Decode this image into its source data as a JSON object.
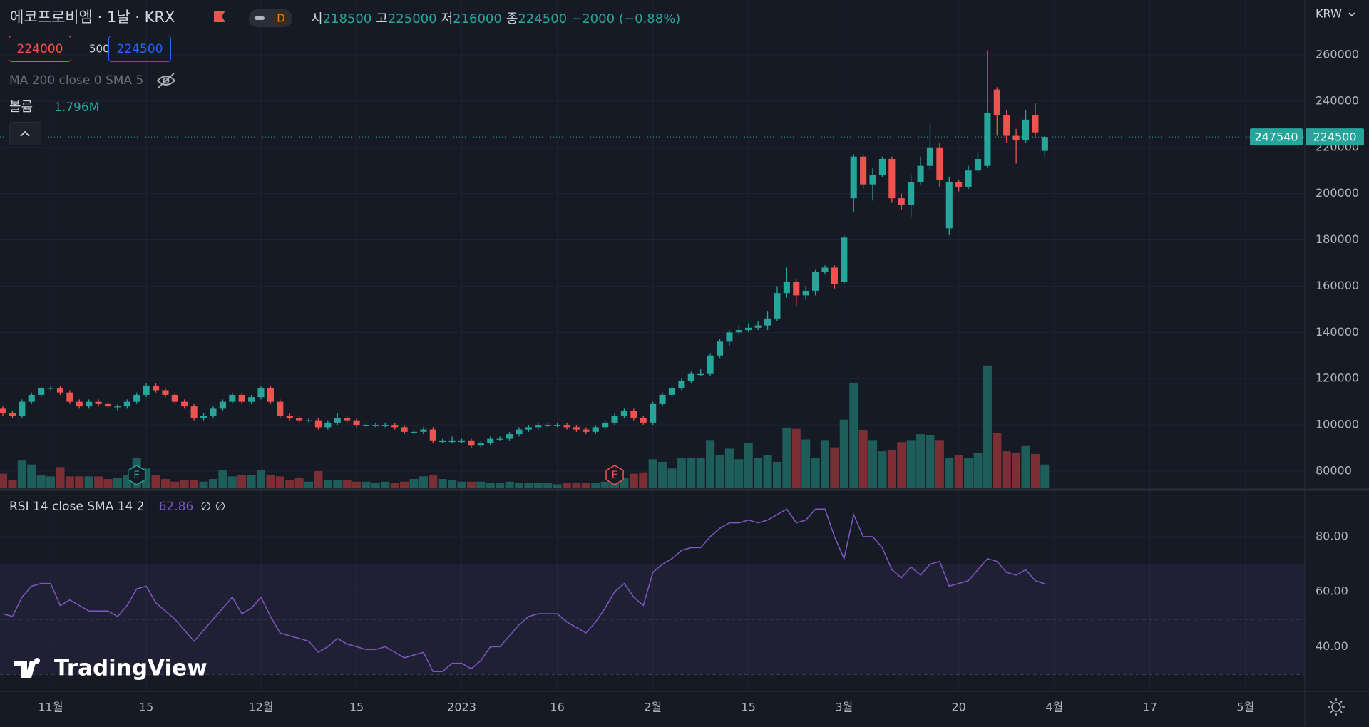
{
  "chart_data": {
    "type": "candlestick",
    "title": "에코프로비엠 · 1날 · KRX",
    "interval": "D",
    "currency": "KRW",
    "legend": {
      "open_label": "시",
      "open": 218500,
      "high_label": "고",
      "high": 225000,
      "low_label": "저",
      "low": 216000,
      "close_label": "종",
      "close": 224500,
      "change": {
        "value": -2000,
        "label": "−2000"
      },
      "change_pct": {
        "value": -0.88,
        "label": "(−0.88%)"
      }
    },
    "trade": {
      "sell": 224000,
      "qty": 500,
      "buy": 224500
    },
    "ma_label": "MA 200 close 0 SMA 5",
    "volume_label": "볼륨",
    "volume_value": {
      "value": 1796000,
      "label": "1.796M"
    },
    "up_color": "#26a69a",
    "down_color": "#ef5350",
    "up_volume_color": "#1d5e5a",
    "down_volume_color": "#7b2f35",
    "open": [
      107000,
      105000,
      104000,
      110000,
      113000,
      116000,
      116000,
      114000,
      110000,
      108000,
      110000,
      109000,
      108000,
      108000,
      110000,
      113000,
      117000,
      115000,
      113000,
      110000,
      108000,
      103000,
      104000,
      107000,
      110000,
      113000,
      110000,
      112000,
      116000,
      110000,
      104000,
      103000,
      102000,
      102000,
      99000,
      101000,
      103000,
      102000,
      100000,
      100000,
      100000,
      100000,
      99000,
      97000,
      97000,
      98000,
      93000,
      93000,
      93000,
      93000,
      91000,
      92000,
      94000,
      94000,
      96000,
      98000,
      99000,
      100000,
      100000,
      100000,
      99000,
      98000,
      97000,
      99000,
      101000,
      104000,
      106000,
      103000,
      101000,
      109000,
      113000,
      116000,
      119000,
      122000,
      122000,
      130000,
      136000,
      140000,
      141000,
      142000,
      143000,
      146000,
      157000,
      162000,
      156000,
      158000,
      166000,
      168000,
      162000,
      198000,
      216000,
      204000,
      208000,
      215000,
      198000,
      195000,
      205000,
      212000,
      220000,
      185000,
      205000,
      203000,
      210000,
      212000,
      245000,
      234000,
      225000,
      223000,
      234000,
      218500
    ],
    "high": [
      108000,
      106000,
      111000,
      114000,
      117000,
      117000,
      117000,
      115000,
      111000,
      111000,
      111000,
      110000,
      109000,
      111000,
      114000,
      118000,
      118000,
      116000,
      114000,
      111000,
      109000,
      105000,
      108000,
      111000,
      114000,
      114000,
      113000,
      117000,
      117000,
      111000,
      105000,
      104000,
      103000,
      103000,
      102000,
      105000,
      104000,
      103000,
      101000,
      101000,
      101000,
      101000,
      100000,
      98000,
      99000,
      99000,
      94000,
      95000,
      94000,
      94000,
      93000,
      95000,
      95000,
      97000,
      99000,
      100000,
      101000,
      101000,
      101000,
      101000,
      100000,
      99000,
      100000,
      102000,
      105000,
      107000,
      107000,
      104000,
      110000,
      114000,
      117000,
      120000,
      123000,
      124000,
      131000,
      137000,
      141000,
      143000,
      144000,
      145000,
      149000,
      160000,
      168000,
      163000,
      160000,
      167000,
      169000,
      169000,
      182000,
      217000,
      217000,
      211000,
      216000,
      216000,
      200000,
      208000,
      216000,
      230000,
      222000,
      207000,
      206000,
      212000,
      218000,
      262000,
      246000,
      236000,
      228000,
      236000,
      239000,
      225000
    ],
    "low": [
      104000,
      103000,
      103000,
      109000,
      112000,
      115000,
      113000,
      109000,
      107000,
      107000,
      108000,
      107000,
      106000,
      107000,
      109000,
      112000,
      114000,
      112000,
      109000,
      107000,
      102000,
      102000,
      103000,
      106000,
      109000,
      109000,
      109000,
      111000,
      109000,
      103000,
      102000,
      101000,
      101000,
      98000,
      98000,
      100000,
      101000,
      99000,
      99000,
      99000,
      99000,
      98000,
      96000,
      96000,
      96000,
      92000,
      92000,
      92000,
      92000,
      90000,
      90000,
      91000,
      93000,
      93000,
      95000,
      97000,
      98000,
      99000,
      99000,
      98000,
      97000,
      96000,
      96000,
      98000,
      100000,
      103000,
      102000,
      100000,
      100000,
      108000,
      112000,
      115000,
      118000,
      121000,
      121000,
      129000,
      134000,
      139000,
      140000,
      141000,
      141000,
      145000,
      155000,
      151000,
      154000,
      156000,
      165000,
      159000,
      161000,
      192000,
      202000,
      197000,
      207000,
      196000,
      193000,
      190000,
      204000,
      210000,
      203000,
      182000,
      201000,
      202000,
      209000,
      211000,
      225000,
      222000,
      213000,
      222000,
      224000,
      216000
    ],
    "close": [
      105000,
      104000,
      110000,
      113000,
      116000,
      116000,
      114000,
      110000,
      108000,
      110000,
      109000,
      108000,
      108000,
      110000,
      113000,
      117000,
      115000,
      113000,
      110000,
      108000,
      103000,
      104000,
      107000,
      110000,
      113000,
      110000,
      112000,
      116000,
      110000,
      104000,
      103000,
      102000,
      102000,
      99000,
      101000,
      103000,
      102000,
      100000,
      100000,
      100000,
      100000,
      99000,
      97000,
      97000,
      98000,
      93000,
      93000,
      93000,
      93000,
      91000,
      92000,
      94000,
      94000,
      96000,
      98000,
      99000,
      100000,
      100000,
      100000,
      99000,
      98000,
      97000,
      99000,
      101000,
      104000,
      106000,
      103000,
      101000,
      109000,
      113000,
      116000,
      119000,
      122000,
      122000,
      130000,
      136000,
      140000,
      141000,
      142000,
      143000,
      146000,
      157000,
      162000,
      156000,
      158000,
      166000,
      168000,
      161000,
      181000,
      216000,
      204000,
      208000,
      215000,
      198000,
      195000,
      205000,
      212000,
      220000,
      206000,
      205000,
      203000,
      210000,
      215000,
      235000,
      234000,
      225000,
      223000,
      232000,
      226500,
      224500
    ],
    "volume": [
      1100000,
      600000,
      2100000,
      1800000,
      1000000,
      900000,
      1600000,
      900000,
      900000,
      900000,
      900000,
      700000,
      800000,
      1000000,
      2300000,
      1500000,
      1000000,
      700000,
      500000,
      600000,
      600000,
      500000,
      700000,
      1400000,
      900000,
      1000000,
      1000000,
      1400000,
      1000000,
      900000,
      600000,
      800000,
      500000,
      1300000,
      600000,
      600000,
      600000,
      500000,
      500000,
      400000,
      500000,
      400000,
      500000,
      700000,
      900000,
      1000000,
      700000,
      600000,
      500000,
      500000,
      500000,
      400000,
      400000,
      500000,
      400000,
      400000,
      400000,
      400000,
      300000,
      400000,
      400000,
      400000,
      400000,
      500000,
      600000,
      800000,
      1100000,
      1200000,
      2200000,
      2000000,
      1500000,
      2300000,
      2300000,
      2300000,
      3600000,
      2500000,
      3000000,
      2200000,
      3400000,
      2300000,
      2500000,
      2000000,
      4600000,
      4500000,
      3700000,
      2300000,
      3600000,
      3100000,
      5200000,
      8000000,
      4400000,
      3600000,
      2800000,
      2900000,
      3500000,
      3600000,
      4100000,
      4000000,
      3600000,
      2300000,
      2500000,
      2300000,
      2700000,
      9300000,
      4200000,
      2800000,
      2700000,
      3200000,
      2600000,
      1796000
    ],
    "ylim": [
      72600,
      283730
    ],
    "yticks": [
      80000,
      100000,
      120000,
      140000,
      160000,
      180000,
      200000,
      220000,
      240000,
      260000
    ],
    "vlim": [
      0,
      37000000
    ],
    "last_price": 224500,
    "price_tag": 247540,
    "xlim": [
      -0.3,
      136.2
    ],
    "xticks": [
      {
        "value": 5,
        "label": "11월"
      },
      {
        "value": 15,
        "label": "15"
      },
      {
        "value": 27,
        "label": "12월"
      },
      {
        "value": 37,
        "label": "15"
      },
      {
        "value": 48,
        "label": "2023"
      },
      {
        "value": 58,
        "label": "16"
      },
      {
        "value": 68,
        "label": "2월"
      },
      {
        "value": 78,
        "label": "15"
      },
      {
        "value": 88,
        "label": "3월"
      },
      {
        "value": 100,
        "label": "20"
      },
      {
        "value": 110,
        "label": "4월"
      },
      {
        "value": 120,
        "label": "17"
      },
      {
        "value": 130,
        "label": "5월"
      }
    ],
    "events": [
      {
        "x": 14,
        "label": "E",
        "kind": "up"
      },
      {
        "x": 64,
        "label": "E",
        "kind": "down"
      }
    ],
    "rsi": {
      "label": "RSI 14 close SMA 14 2",
      "value": 62.86,
      "extra": "∅ ∅",
      "color": "#7e57c2",
      "values": [
        52,
        51,
        58,
        62,
        63,
        63,
        55,
        57,
        55,
        53,
        53,
        53,
        51,
        55,
        61,
        62,
        56,
        53,
        50,
        46,
        42,
        46,
        50,
        54,
        58,
        52,
        54,
        58,
        51,
        45,
        44,
        43,
        42,
        38,
        40,
        43,
        41,
        40,
        39,
        39,
        40,
        38,
        36,
        37,
        38,
        31,
        31,
        34,
        34,
        32,
        35,
        40,
        40,
        44,
        48,
        51,
        52,
        52,
        52,
        49,
        47,
        45,
        49,
        54,
        60,
        63,
        58,
        55,
        67,
        70,
        72,
        75,
        76,
        76,
        80,
        83,
        85,
        85,
        86,
        85,
        86,
        88,
        90,
        85,
        86,
        90,
        90,
        80,
        72,
        88,
        80,
        80,
        76,
        68,
        65,
        69,
        66,
        70,
        71,
        62,
        63,
        64,
        68,
        72,
        71,
        67,
        66,
        68,
        64,
        62.86
      ],
      "ylim": [
        23.8,
        96.8
      ],
      "yticks": [
        {
          "value": 40,
          "label": "40.00"
        },
        {
          "value": 60,
          "label": "60.00"
        },
        {
          "value": 80,
          "label": "80.00"
        }
      ],
      "band": [
        30,
        70
      ],
      "mid": 50
    },
    "watermark": "TradingView"
  }
}
